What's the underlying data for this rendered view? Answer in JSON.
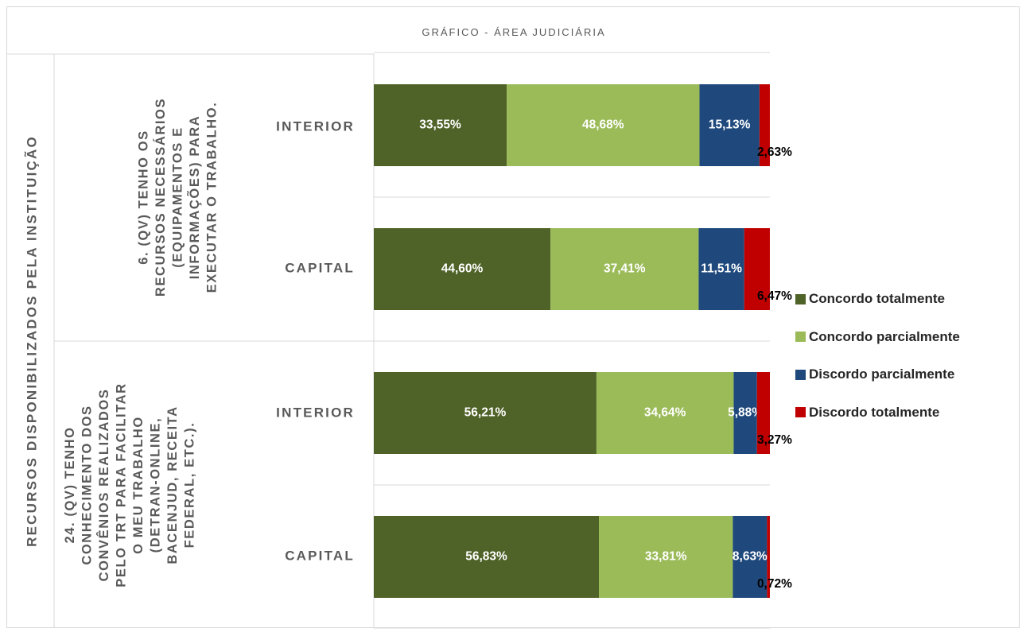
{
  "chart_data": {
    "type": "bar",
    "orientation": "horizontal",
    "stacked": "100%",
    "title": "GRÁFICO - ÁREA JUDICIÁRIA",
    "group_axis_label": "RECURSOS DISPONIBILIZADOS PELA INSTITUIÇÃO",
    "questions": [
      {
        "label_lines": [
          "6. (QV) TENHO OS",
          "RECURSOS NECESSÁRIOS",
          "(EQUIPAMENTOS E",
          "INFORMAÇÕES) PARA",
          "EXECUTAR O TRABALHO."
        ],
        "rows": [
          {
            "category": "INTERIOR",
            "values": [
              33.55,
              48.68,
              15.13,
              2.63
            ],
            "labels": [
              "33,55%",
              "48,68%",
              "15,13%",
              "2,63%"
            ]
          },
          {
            "category": "CAPITAL",
            "values": [
              44.6,
              37.41,
              11.51,
              6.47
            ],
            "labels": [
              "44,60%",
              "37,41%",
              "11,51%",
              "6,47%"
            ]
          }
        ]
      },
      {
        "label_lines": [
          "24. (QV) TENHO",
          "CONHECIMENTO DOS",
          "CONVÊNIOS REALIZADOS",
          "PELO TRT PARA FACILITAR",
          "O MEU TRABALHO",
          "(DETRAN-ONLINE,",
          "BACENJUD, RECEITA",
          "FEDERAL, ETC.)."
        ],
        "rows": [
          {
            "category": "INTERIOR",
            "values": [
              56.21,
              34.64,
              5.88,
              3.27
            ],
            "labels": [
              "56,21%",
              "34,64%",
              "5,88%",
              "3,27%"
            ]
          },
          {
            "category": "CAPITAL",
            "values": [
              56.83,
              33.81,
              8.63,
              0.72
            ],
            "labels": [
              "56,83%",
              "33,81%",
              "8,63%",
              "0,72%"
            ]
          }
        ]
      }
    ],
    "series": [
      {
        "name": "Concordo totalmente",
        "color": "#4f6228"
      },
      {
        "name": "Concordo parcialmente",
        "color": "#9bbb59"
      },
      {
        "name": "Discordo parcialmente",
        "color": "#1f497d"
      },
      {
        "name": "Discordo totalmente",
        "color": "#c00000"
      }
    ],
    "xlim": [
      0,
      100
    ],
    "legend_position": "right"
  }
}
